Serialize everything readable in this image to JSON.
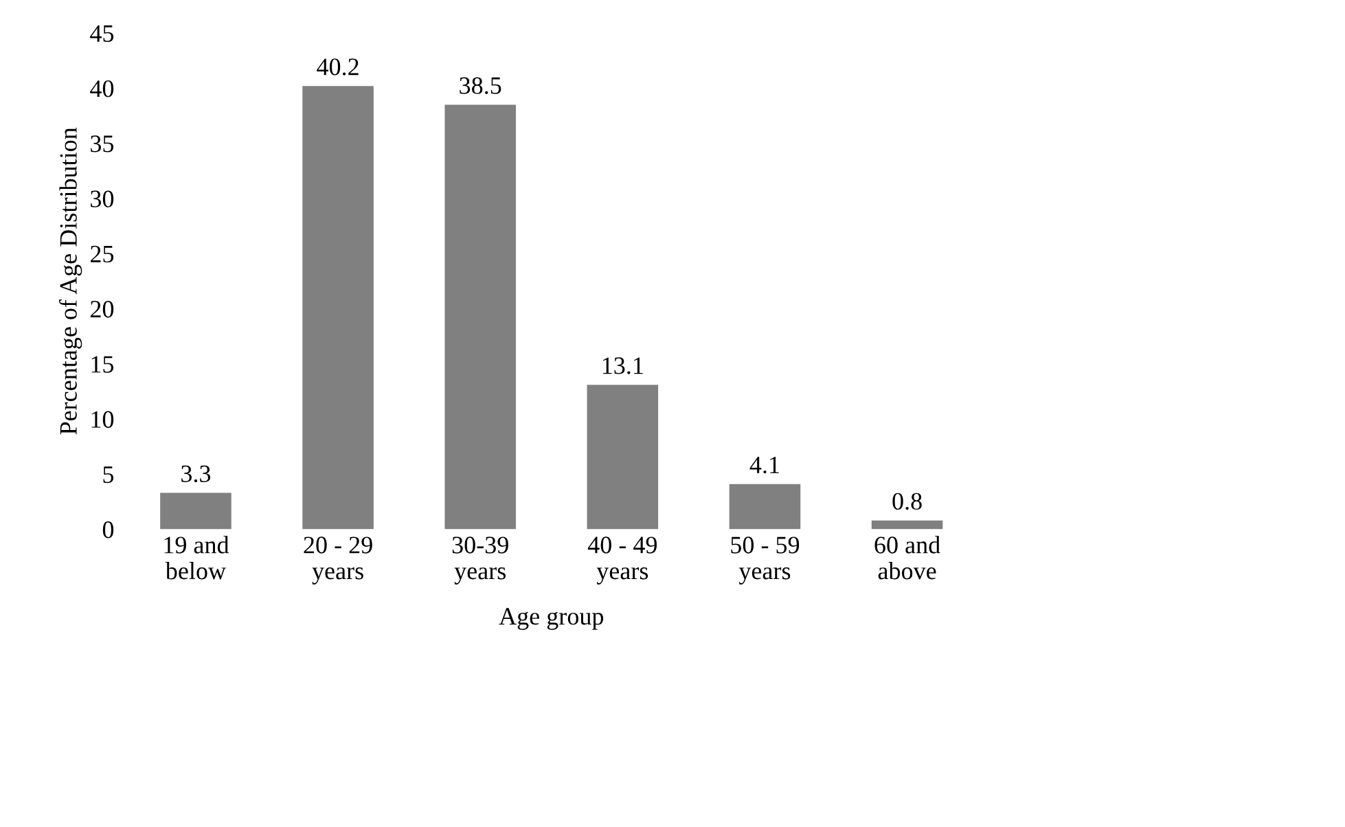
{
  "chart_data": {
    "type": "bar",
    "xlabel": "Age group",
    "ylabel": "Percentage of Age Distribution",
    "categories": [
      "19 and\nbelow",
      "20 - 29\nyears",
      "30-39\nyears",
      "40 - 49\nyears",
      "50 - 59\nyears",
      "60 and\nabove"
    ],
    "values": [
      3.3,
      40.2,
      38.5,
      13.1,
      4.1,
      0.8
    ],
    "color": "#808080",
    "ylim": [
      0,
      45
    ],
    "yticks": [
      0,
      5,
      10,
      15,
      20,
      25,
      30,
      35,
      40,
      45
    ],
    "data_labels": true,
    "grid": false,
    "legend": false
  }
}
